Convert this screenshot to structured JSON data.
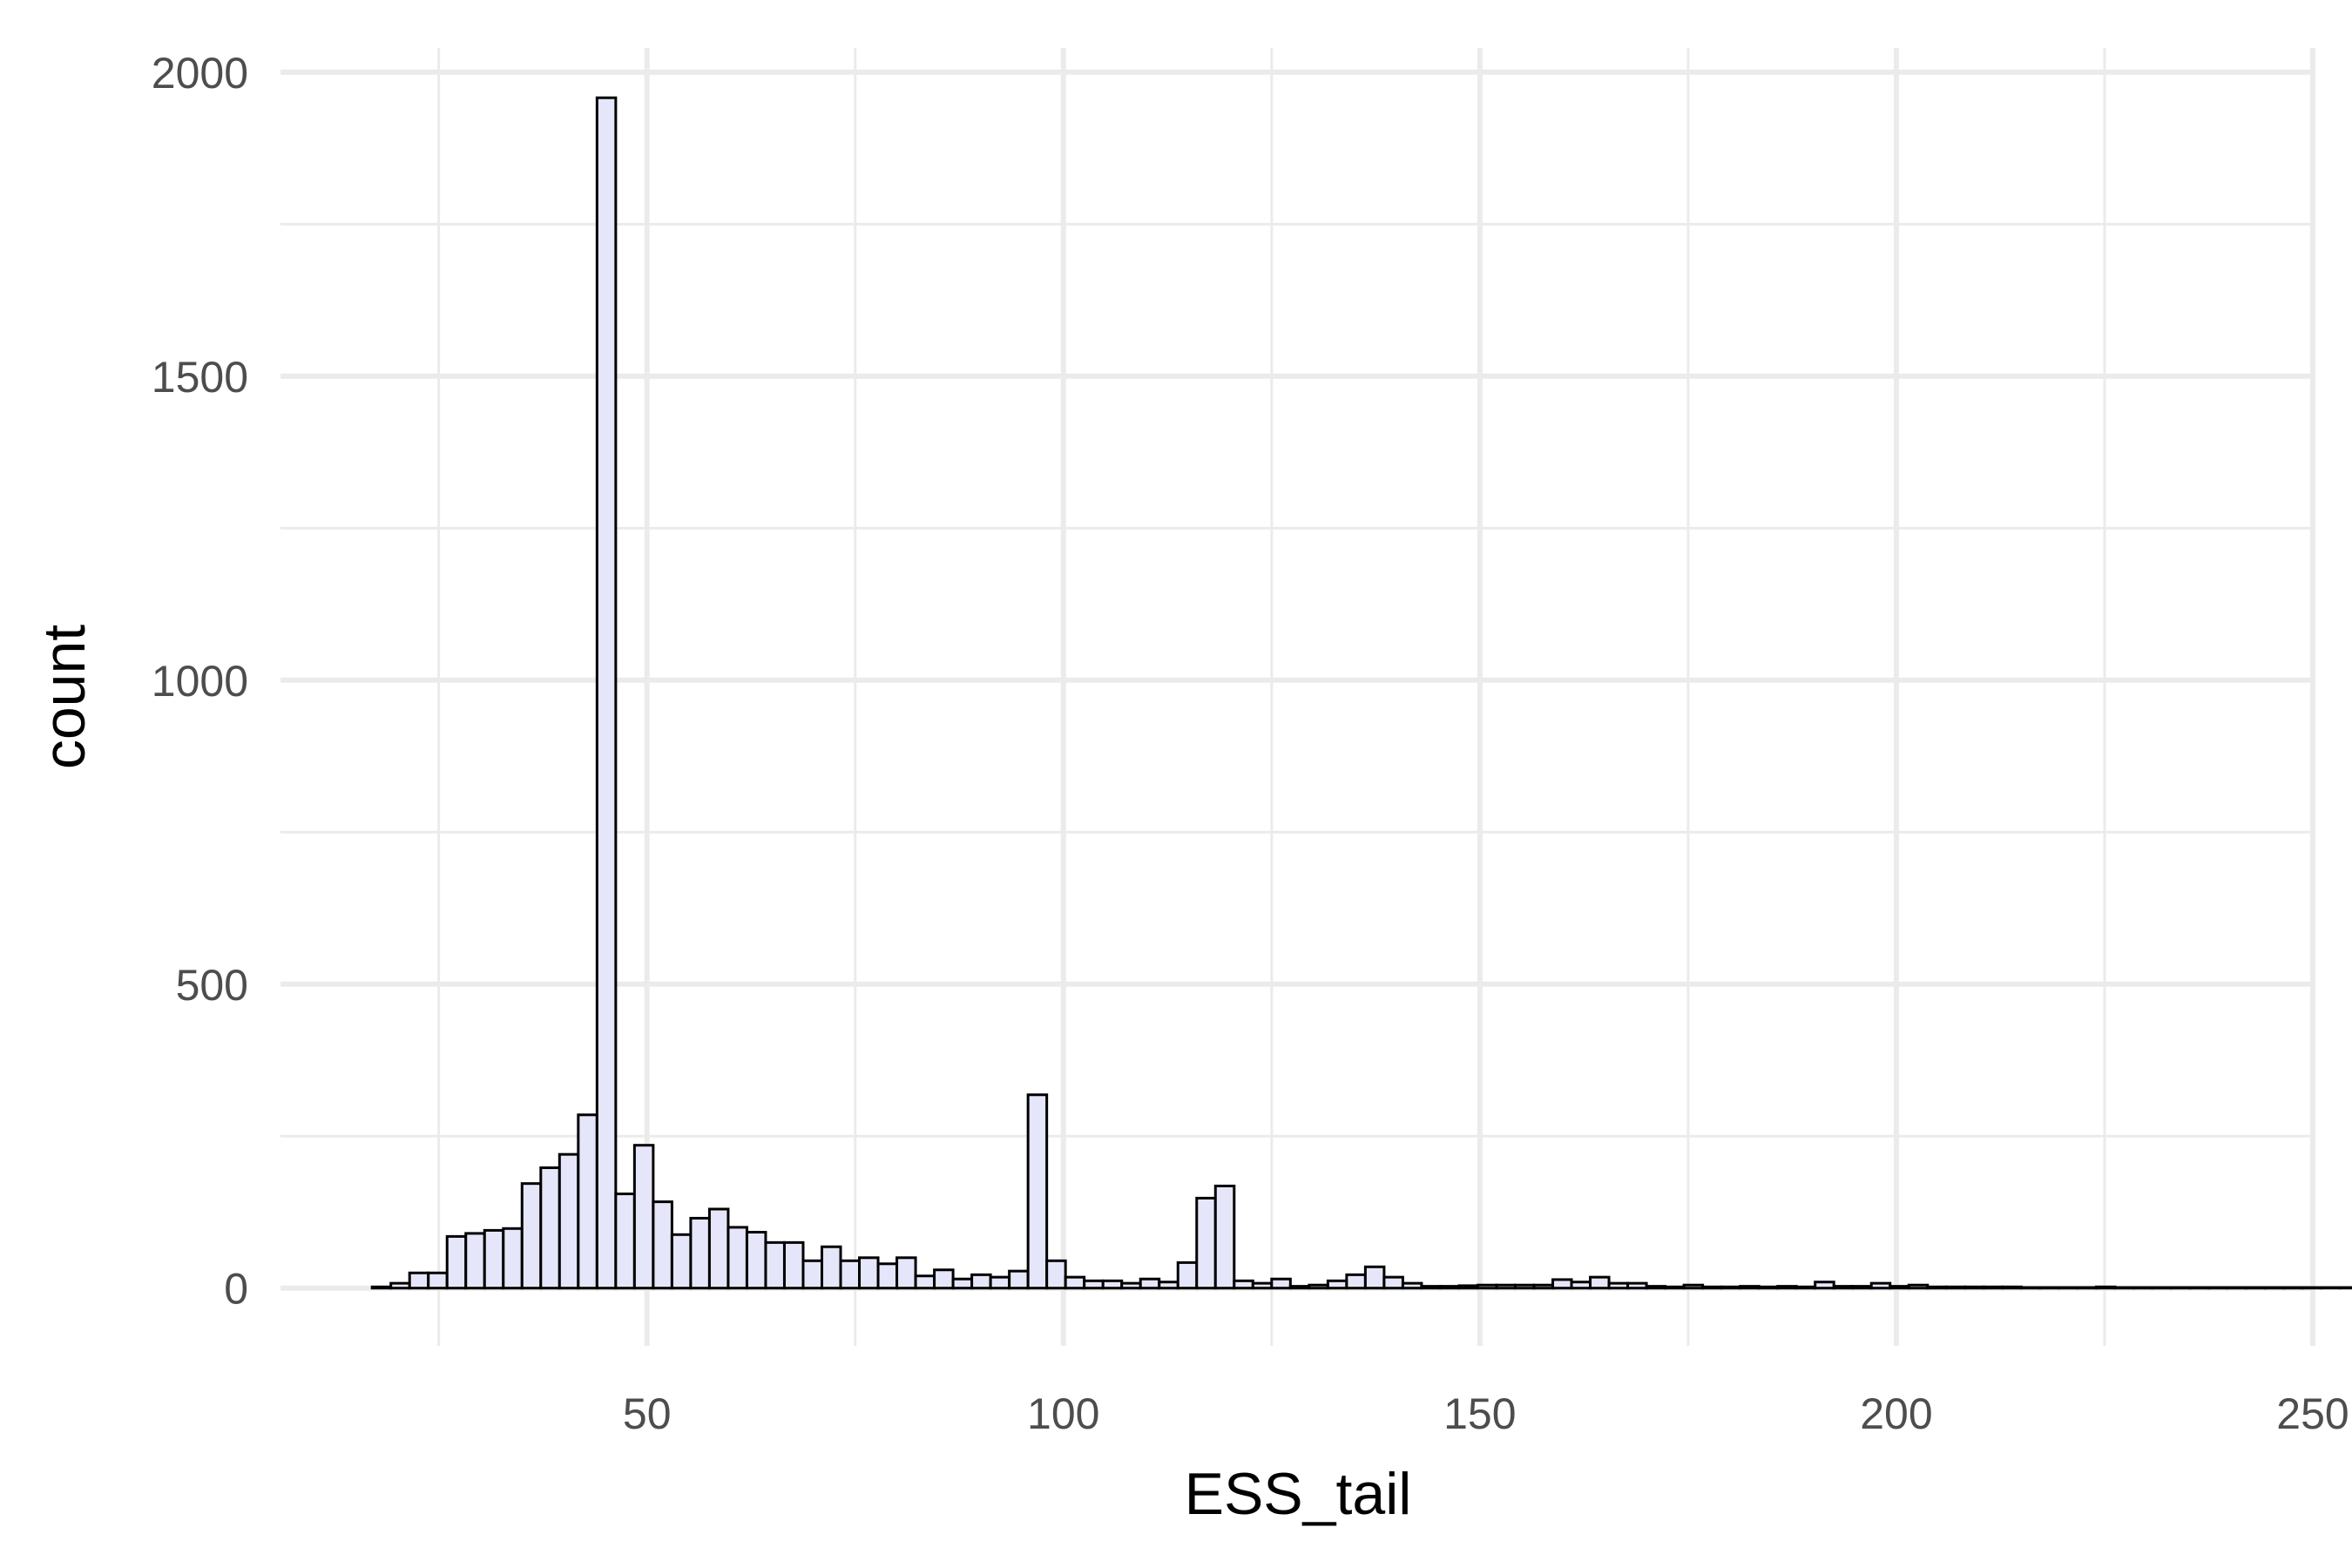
{
  "chart_data": {
    "type": "bar",
    "subtype": "histogram",
    "title": "",
    "xlabel": "ESS_tail",
    "ylabel": "count",
    "xlim": [
      6,
      250
    ],
    "ylim": [
      -95,
      2040
    ],
    "x_ticks": [
      50,
      100,
      150,
      200,
      250
    ],
    "y_ticks": [
      0,
      500,
      1000,
      1500,
      2000
    ],
    "x_tick_labels": [
      "50",
      "100",
      "150",
      "200",
      "250"
    ],
    "y_tick_labels": [
      "0",
      "500",
      "1000",
      "1500",
      "2000"
    ],
    "x_minor_ticks": [
      25,
      75,
      125,
      175,
      225
    ],
    "y_minor_ticks": [
      250,
      750,
      1250,
      1750
    ],
    "grid": true,
    "legend": "none",
    "bin_start": 17,
    "bin_width": 2.25,
    "counts": [
      2,
      8,
      25,
      25,
      85,
      90,
      95,
      98,
      172,
      198,
      220,
      285,
      1958,
      155,
      235,
      142,
      88,
      115,
      130,
      100,
      92,
      75,
      75,
      45,
      68,
      45,
      50,
      40,
      50,
      20,
      30,
      15,
      22,
      18,
      28,
      318,
      45,
      18,
      12,
      12,
      8,
      15,
      10,
      42,
      148,
      168,
      12,
      8,
      15,
      3,
      5,
      12,
      22,
      35,
      18,
      8,
      3,
      3,
      4,
      5,
      5,
      5,
      5,
      14,
      10,
      18,
      8,
      8,
      3,
      2,
      5,
      2,
      2,
      3,
      2,
      3,
      2,
      10,
      3,
      3,
      8,
      3,
      5,
      2,
      2,
      2,
      2,
      2,
      1,
      1,
      1,
      1,
      2,
      1,
      1,
      1,
      1,
      1,
      1,
      1,
      1,
      1,
      1,
      1,
      1,
      1,
      1,
      1,
      1,
      1
    ],
    "colors": {
      "bar_fill": "#e6e6fa",
      "bar_stroke": "#000000",
      "grid": "#ebebeb",
      "background": "#ffffff"
    }
  }
}
